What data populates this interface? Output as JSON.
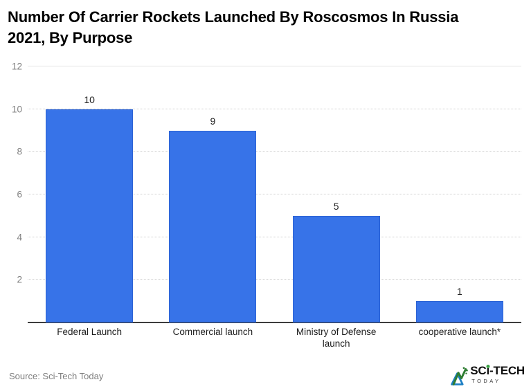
{
  "title": "Number Of Carrier Rockets Launched By Roscosmos In Russia 2021, By Purpose",
  "source": "Source: Sci-Tech Today",
  "logo": {
    "part1": "SC",
    "part2": "i",
    "part3": "-TECH",
    "sub": "TODAY"
  },
  "colors": {
    "bar": "#3773e8",
    "bar_edge": "#2c63d4",
    "grid_dotted": "#cfcfcf",
    "grid_top_solid": "#e4e4e4",
    "axis_baseline": "#3c3c3c",
    "tick_label": "#808080",
    "value_label": "#1f1f1f",
    "logo_green": "#2e7d32",
    "logo_blue": "#1d7fc4"
  },
  "chart_data": {
    "type": "bar",
    "title": "Number Of Carrier Rockets Launched By Roscosmos In Russia 2021, By Purpose",
    "categories": [
      "Federal Launch",
      "Commercial launch",
      "Ministry of Defense launch",
      "cooperative launch*"
    ],
    "values": [
      10,
      9,
      5,
      1
    ],
    "xlabel": "",
    "ylabel": "",
    "ylim": [
      0,
      12
    ],
    "yticks": [
      2,
      4,
      6,
      8,
      10,
      12
    ],
    "grid": "horizontal-dotted",
    "legend": "none",
    "bar_color": "#3773e8",
    "value_labels": true
  }
}
